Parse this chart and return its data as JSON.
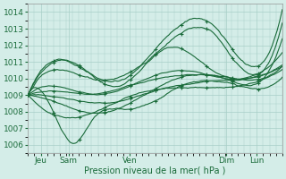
{
  "background_color": "#d4ede8",
  "grid_color": "#a8cfc8",
  "line_color": "#1a6b3a",
  "ylabel_ticks": [
    1006,
    1007,
    1008,
    1009,
    1010,
    1011,
    1012,
    1013,
    1014
  ],
  "ylim": [
    1005.5,
    1014.5
  ],
  "xlim": [
    0,
    100
  ],
  "xlabel": "Pression niveau de la mer( hPa )",
  "xtick_pos": [
    5,
    16,
    40,
    78,
    90
  ],
  "xtick_labels": [
    "Jeu",
    "Sam",
    "Ven",
    "Dim",
    "Lun"
  ],
  "axis_fontsize": 7,
  "tick_fontsize": 6.5,
  "ensemble_lines": [
    {
      "xp": [
        0,
        12,
        20,
        35,
        55,
        72,
        85,
        100
      ],
      "yp": [
        1009.0,
        1011.2,
        1010.8,
        1009.8,
        1012.5,
        1013.2,
        1010.8,
        1013.8
      ],
      "ns": 0.07
    },
    {
      "xp": [
        0,
        12,
        20,
        35,
        55,
        72,
        85,
        100
      ],
      "yp": [
        1009.0,
        1010.5,
        1010.2,
        1010.0,
        1012.0,
        1012.8,
        1010.5,
        1013.3
      ],
      "ns": 0.06
    },
    {
      "xp": [
        0,
        10,
        18,
        25,
        40,
        60,
        78,
        90,
        100
      ],
      "yp": [
        1009.0,
        1008.0,
        1006.2,
        1007.5,
        1008.2,
        1009.5,
        1009.8,
        1009.5,
        1010.2
      ],
      "ns": 0.05
    },
    {
      "xp": [
        0,
        12,
        22,
        35,
        55,
        72,
        85,
        100
      ],
      "yp": [
        1009.0,
        1008.5,
        1008.0,
        1008.2,
        1009.8,
        1010.2,
        1009.8,
        1010.5
      ],
      "ns": 0.04
    },
    {
      "xp": [
        0,
        12,
        22,
        35,
        55,
        72,
        85,
        100
      ],
      "yp": [
        1009.0,
        1011.0,
        1010.5,
        1009.5,
        1011.8,
        1010.5,
        1010.0,
        1010.8
      ],
      "ns": 0.05
    },
    {
      "xp": [
        0,
        12,
        25,
        40,
        60,
        78,
        90,
        100
      ],
      "yp": [
        1009.0,
        1007.8,
        1008.0,
        1009.0,
        1009.5,
        1009.5,
        1009.8,
        1010.5
      ],
      "ns": 0.04
    },
    {
      "xp": [
        0,
        12,
        25,
        40,
        60,
        78,
        90,
        100
      ],
      "yp": [
        1009.0,
        1009.5,
        1009.0,
        1009.5,
        1010.5,
        1010.0,
        1010.2,
        1011.5
      ],
      "ns": 0.03
    },
    {
      "xp": [
        0,
        12,
        25,
        40,
        60,
        78,
        90,
        100
      ],
      "yp": [
        1009.0,
        1009.2,
        1009.0,
        1009.5,
        1010.2,
        1010.0,
        1009.8,
        1012.5
      ],
      "ns": 0.03
    },
    {
      "xp": [
        0,
        15,
        30,
        50,
        70,
        85,
        100
      ],
      "yp": [
        1009.0,
        1008.8,
        1008.5,
        1009.2,
        1009.8,
        1010.0,
        1010.8
      ],
      "ns": 0.03
    }
  ]
}
